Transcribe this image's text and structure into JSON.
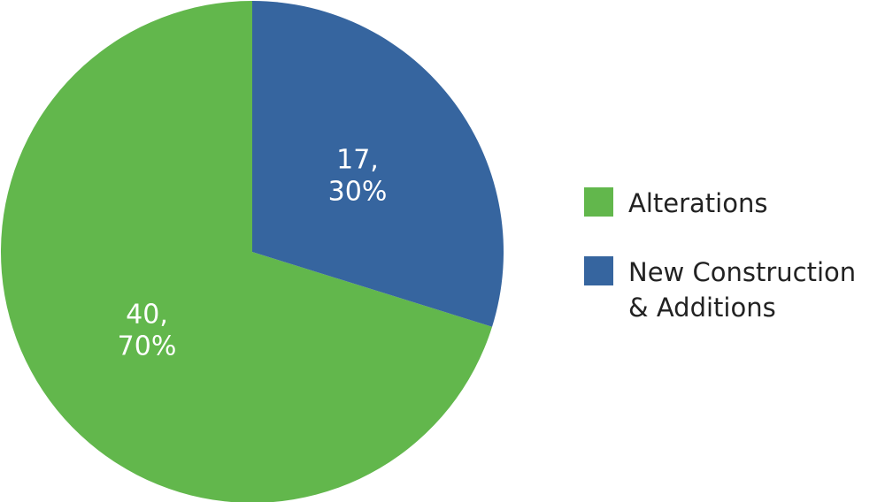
{
  "chart_data": {
    "type": "pie",
    "categories": [
      "Alterations",
      "New Construction & Additions"
    ],
    "values": [
      40,
      17
    ],
    "value_labels": [
      [
        "40,",
        "70%"
      ],
      [
        "17,",
        "30%"
      ]
    ],
    "colors": [
      "#62b74c",
      "#36659f"
    ],
    "legend": "right"
  }
}
